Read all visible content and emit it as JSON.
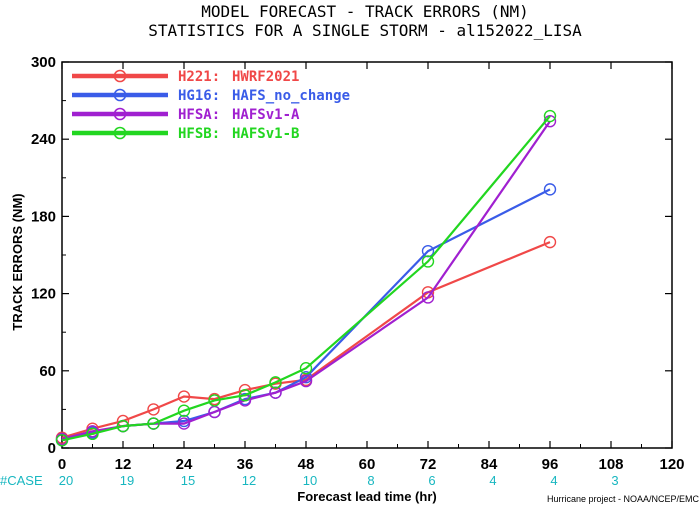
{
  "title_line1": "MODEL FORECAST - TRACK ERRORS (NM)",
  "title_line2": "STATISTICS FOR A SINGLE STORM - al152022_LISA",
  "credit": "Hurricane project - NOAA/NCEP/EMC",
  "case_label": "#CASE",
  "chart_data": {
    "type": "line",
    "xlabel": "Forecast lead time (hr)",
    "ylabel": "TRACK ERRORS (NM)",
    "xlim": [
      0,
      120
    ],
    "ylim": [
      0,
      300
    ],
    "xticks": [
      "0",
      "12",
      "24",
      "36",
      "48",
      "60",
      "72",
      "84",
      "96",
      "108",
      "120"
    ],
    "yticks": [
      "0",
      "60",
      "120",
      "180",
      "240",
      "300"
    ],
    "grid": false,
    "legend_position": "top-left",
    "cases": [
      {
        "x": 0,
        "label": "20"
      },
      {
        "x": 12,
        "label": "19"
      },
      {
        "x": 24,
        "label": "15"
      },
      {
        "x": 36,
        "label": "12"
      },
      {
        "x": 48,
        "label": "10"
      },
      {
        "x": 60,
        "label": "8"
      },
      {
        "x": 72,
        "label": "6"
      },
      {
        "x": 84,
        "label": "4"
      },
      {
        "x": 96,
        "label": "4"
      },
      {
        "x": 108,
        "label": "3"
      }
    ],
    "series": [
      {
        "code": "H221:",
        "name": "HWRF2021",
        "color": "#f04848",
        "x": [
          0,
          6,
          12,
          18,
          24,
          30,
          36,
          42,
          48,
          72,
          96
        ],
        "y": [
          8,
          15,
          21,
          30,
          40,
          38,
          45,
          50,
          53,
          121,
          160
        ]
      },
      {
        "code": "HG16:",
        "name": "HAFS_no_change",
        "color": "#3a5ce8",
        "x": [
          0,
          6,
          12,
          18,
          24,
          30,
          36,
          42,
          48,
          72,
          96
        ],
        "y": [
          6,
          12,
          17,
          19,
          21,
          28,
          38,
          43,
          55,
          153,
          201
        ]
      },
      {
        "code": "HFSA:",
        "name": "HAFSv1-A",
        "color": "#a020d0",
        "x": [
          0,
          6,
          12,
          18,
          24,
          30,
          36,
          42,
          48,
          72,
          96
        ],
        "y": [
          7,
          13,
          17,
          19,
          19,
          28,
          37,
          43,
          52,
          117,
          254
        ]
      },
      {
        "code": "HFSB:",
        "name": "HAFSv1-B",
        "color": "#22d620",
        "x": [
          0,
          6,
          12,
          18,
          24,
          30,
          36,
          42,
          48,
          72,
          96
        ],
        "y": [
          6,
          11,
          17,
          19,
          29,
          37,
          41,
          51,
          62,
          145,
          258
        ]
      }
    ]
  }
}
